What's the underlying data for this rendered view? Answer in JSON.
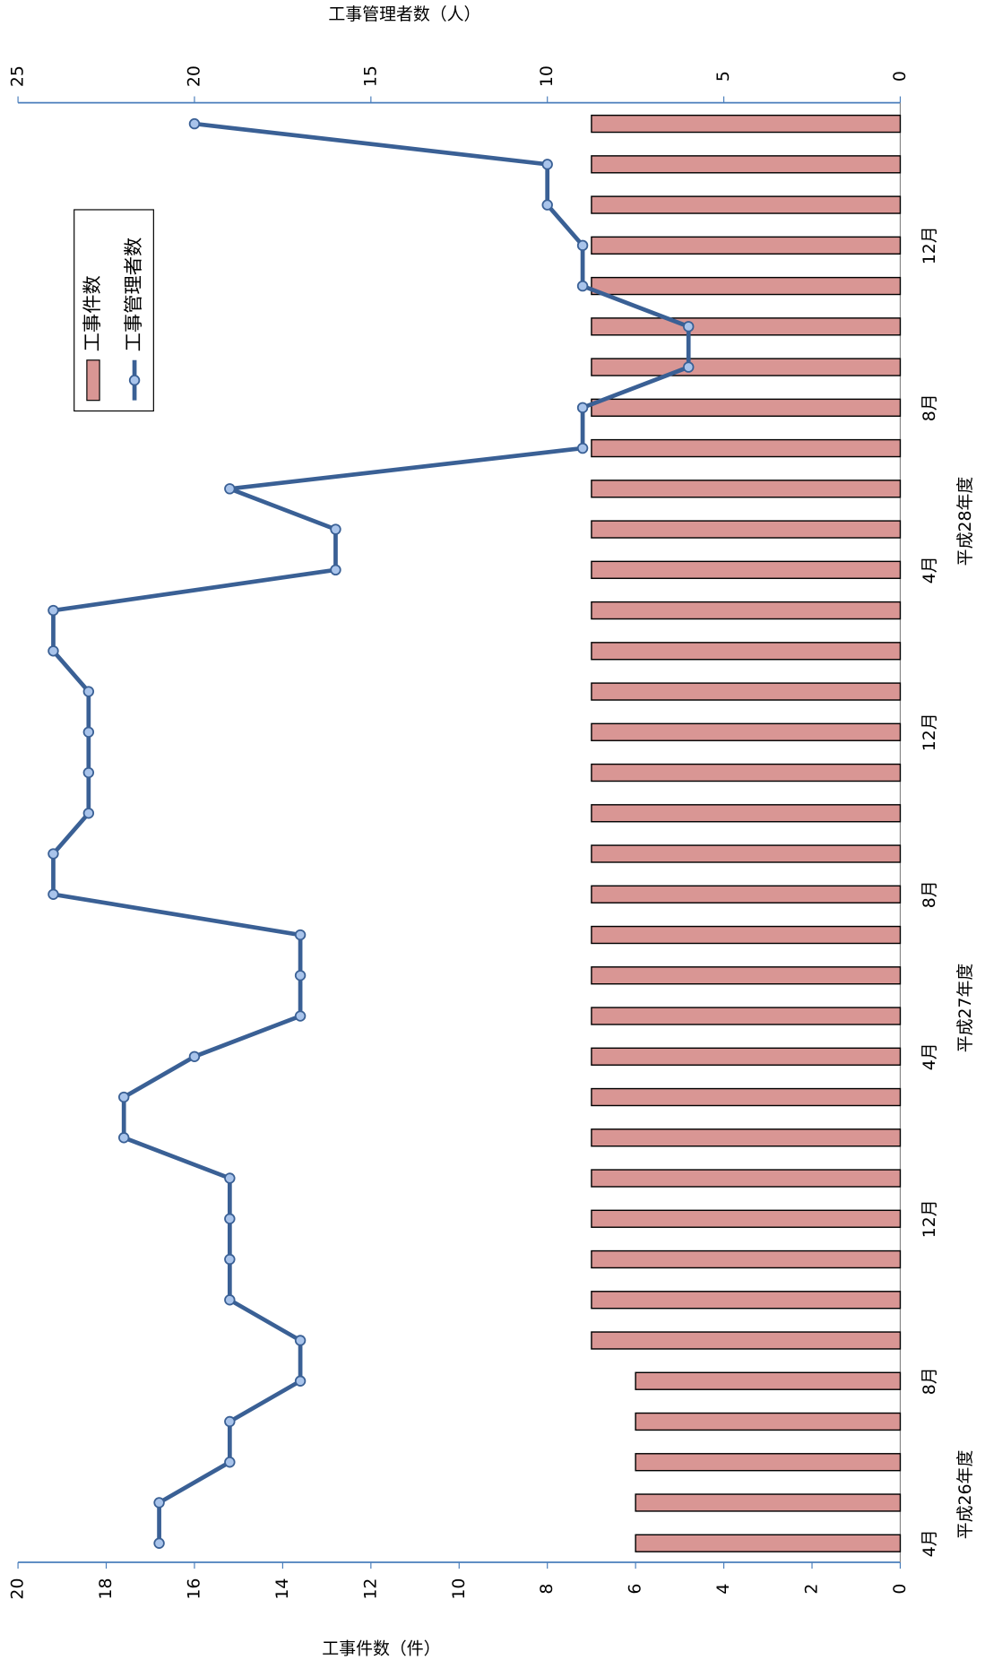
{
  "chart_data": {
    "type": "bar-line",
    "categories": [
      "4月",
      null,
      null,
      null,
      "8月",
      null,
      null,
      null,
      "12月",
      null,
      null,
      null,
      "4月",
      null,
      null,
      null,
      "8月",
      null,
      null,
      null,
      "12月",
      null,
      null,
      null,
      "4月",
      null,
      null,
      null,
      "8月",
      null,
      null,
      null,
      "12月",
      null,
      null,
      null
    ],
    "groups": [
      {
        "label": "平成26年度",
        "start": 0
      },
      {
        "label": "平成27年度",
        "start": 12
      },
      {
        "label": "平成28年度",
        "start": 24
      }
    ],
    "ylabel": "工事件数（件）",
    "y2label": "工事管理者数（人）",
    "ylim": [
      0,
      20
    ],
    "yticks": [
      0,
      2,
      4,
      6,
      8,
      10,
      12,
      14,
      16,
      18,
      20
    ],
    "y2lim": [
      0,
      25
    ],
    "y2ticks": [
      0,
      5,
      10,
      15,
      20,
      25
    ],
    "series": [
      {
        "name": "工事件数",
        "type": "bar",
        "color": "#d99694",
        "values": [
          6,
          6,
          6,
          6,
          6,
          7,
          7,
          7,
          7,
          7,
          7,
          7,
          7,
          7,
          7,
          7,
          7,
          7,
          7,
          7,
          7,
          7,
          7,
          7,
          7,
          7,
          7,
          7,
          7,
          7,
          7,
          7,
          7,
          7,
          7,
          7
        ]
      },
      {
        "name": "工事管理者数",
        "type": "line",
        "axis": "y2",
        "color": "#3a6095",
        "values": [
          21,
          21,
          19,
          19,
          17,
          17,
          19,
          19,
          19,
          19,
          22,
          22,
          20,
          17,
          17,
          17,
          24,
          24,
          23,
          23,
          23,
          23,
          24,
          24,
          16,
          16,
          19,
          9,
          9,
          6,
          6,
          9,
          9,
          10,
          10,
          20
        ]
      }
    ]
  }
}
